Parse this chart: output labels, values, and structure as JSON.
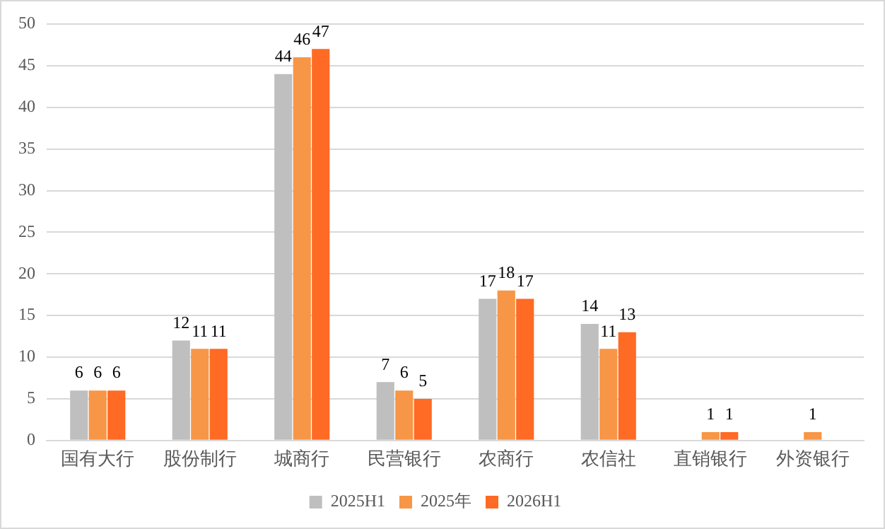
{
  "chart_data": {
    "type": "bar",
    "categories": [
      "国有大行",
      "股份制行",
      "城商行",
      "民营银行",
      "农商行",
      "农信社",
      "直销银行",
      "外资银行"
    ],
    "series": [
      {
        "name": "2025H1",
        "color": "#bfbfbf",
        "values": [
          6,
          12,
          44,
          7,
          17,
          14,
          null,
          null
        ]
      },
      {
        "name": "2025年",
        "color": "#f79646",
        "values": [
          6,
          11,
          46,
          6,
          18,
          11,
          1,
          1
        ]
      },
      {
        "name": "2026H1",
        "color": "#ff6a24",
        "values": [
          6,
          11,
          47,
          5,
          17,
          13,
          1,
          null
        ]
      }
    ],
    "ylim": [
      0,
      50
    ],
    "yticks": [
      0,
      5,
      10,
      15,
      20,
      25,
      30,
      35,
      40,
      45,
      50
    ],
    "grid": "y",
    "legend": "bottom",
    "data_labels": true
  }
}
